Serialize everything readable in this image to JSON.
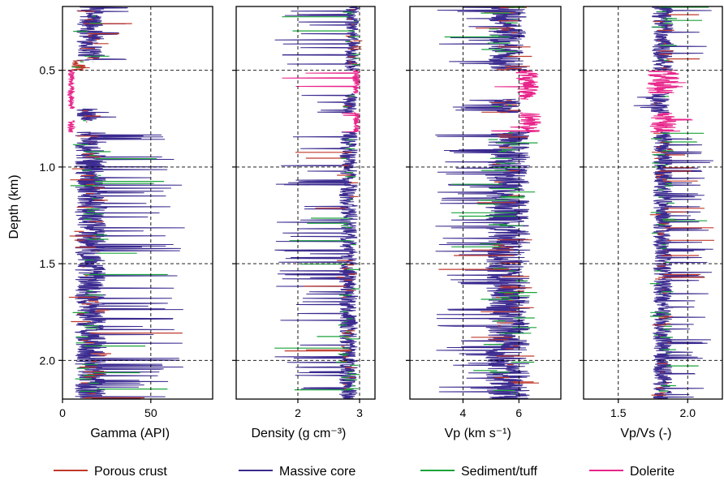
{
  "chart_data": {
    "type": "line",
    "shared_y": {
      "label": "Depth (km)",
      "range": [
        0.17,
        2.2
      ],
      "inverted": true,
      "ticks": [
        0.5,
        1.0,
        1.5,
        2.0
      ],
      "tick_labels": [
        "0.5",
        "1.0",
        "1.5",
        "2.0"
      ]
    },
    "legend": {
      "placement": "bottom",
      "entries": [
        {
          "key": "porous",
          "label": "Porous crust",
          "color": "#c0392b"
        },
        {
          "key": "massive",
          "label": "Massive core",
          "color": "#3b2a8f"
        },
        {
          "key": "sediment",
          "label": "Sediment/tuff",
          "color": "#1aa33a"
        },
        {
          "key": "dolerite",
          "label": "Dolerite",
          "color": "#e8248a"
        }
      ]
    },
    "panels": [
      {
        "id": "gamma",
        "xlabel": "Gamma (API)",
        "xlim": [
          0,
          85
        ],
        "xticks": [
          0,
          50
        ],
        "xtick_labels": [
          "0",
          "50"
        ],
        "ref_x": [
          50
        ],
        "grid_y": true,
        "dolerite_spikes": false,
        "segments": [
          {
            "from": 0.17,
            "to": 0.45,
            "lith": "massive",
            "base": 16,
            "amp": 8,
            "spike": 40,
            "sp": 0.08
          },
          {
            "from": 0.45,
            "to": 0.5,
            "lith": "porous",
            "base": 9,
            "amp": 4,
            "spike": 20,
            "sp": 0.05
          },
          {
            "from": 0.5,
            "to": 0.7,
            "lith": "dolerite",
            "base": 5,
            "amp": 2,
            "spike": 9,
            "sp": 0
          },
          {
            "from": 0.7,
            "to": 0.76,
            "lith": "massive",
            "base": 14,
            "amp": 6,
            "spike": 35,
            "sp": 0.1
          },
          {
            "from": 0.76,
            "to": 0.82,
            "lith": "dolerite",
            "base": 5,
            "amp": 2,
            "spike": 8,
            "sp": 0
          },
          {
            "from": 0.82,
            "to": 2.2,
            "lith": "massive",
            "base": 16,
            "amp": 9,
            "spike": 70,
            "sp": 0.06
          }
        ]
      },
      {
        "id": "density",
        "xlabel": "Density (g cm⁻³)",
        "xlim": [
          1.0,
          3.25
        ],
        "xticks": [
          2,
          3
        ],
        "xtick_labels": [
          "2",
          "3"
        ],
        "ref_x": [
          2,
          3
        ],
        "grid_y": true,
        "dolerite_spikes": true,
        "segments": [
          {
            "from": 0.17,
            "to": 0.5,
            "lith": "massive",
            "base": 2.88,
            "amp": 0.12,
            "spike": 1.6,
            "sp": 0.06
          },
          {
            "from": 0.5,
            "to": 0.62,
            "lith": "dolerite",
            "base": 2.95,
            "amp": 0.06,
            "spike": 1.5,
            "sp": 0.04
          },
          {
            "from": 0.62,
            "to": 0.72,
            "lith": "massive",
            "base": 2.85,
            "amp": 0.12,
            "spike": 2.0,
            "sp": 0.08
          },
          {
            "from": 0.72,
            "to": 0.82,
            "lith": "dolerite",
            "base": 2.95,
            "amp": 0.06,
            "spike": 2.6,
            "sp": 0.05
          },
          {
            "from": 0.82,
            "to": 2.2,
            "lith": "massive",
            "base": 2.82,
            "amp": 0.15,
            "spike": 1.6,
            "sp": 0.06
          }
        ]
      },
      {
        "id": "vp",
        "xlabel": "Vp (km s⁻¹)",
        "xlim": [
          2.1,
          7.5
        ],
        "xticks": [
          4,
          6
        ],
        "xtick_labels": [
          "4",
          "6"
        ],
        "ref_x": [
          4,
          6
        ],
        "grid_y": true,
        "dolerite_spikes": true,
        "segments": [
          {
            "from": 0.17,
            "to": 0.5,
            "lith": "massive",
            "base": 5.6,
            "amp": 0.7,
            "spike": 3.0,
            "sp": 0.07
          },
          {
            "from": 0.5,
            "to": 0.65,
            "lith": "dolerite",
            "base": 6.3,
            "amp": 0.4,
            "spike": 4.5,
            "sp": 0.05
          },
          {
            "from": 0.65,
            "to": 0.72,
            "lith": "massive",
            "base": 5.5,
            "amp": 0.6,
            "spike": 3.5,
            "sp": 0.08
          },
          {
            "from": 0.72,
            "to": 0.82,
            "lith": "dolerite",
            "base": 6.4,
            "amp": 0.4,
            "spike": 5.0,
            "sp": 0.05
          },
          {
            "from": 0.82,
            "to": 2.2,
            "lith": "massive",
            "base": 5.6,
            "amp": 0.8,
            "spike": 3.0,
            "sp": 0.07
          }
        ]
      },
      {
        "id": "vpvs",
        "xlabel": "Vp/Vs (-)",
        "xlim": [
          1.25,
          2.25
        ],
        "xticks": [
          1.5,
          2.0
        ],
        "xtick_labels": [
          "1.5",
          "2.0"
        ],
        "ref_x": [
          1.5,
          2.0
        ],
        "grid_y": true,
        "dolerite_spikes": true,
        "segments": [
          {
            "from": 0.17,
            "to": 0.5,
            "lith": "massive",
            "base": 1.82,
            "amp": 0.08,
            "spike": 2.2,
            "sp": 0.06
          },
          {
            "from": 0.5,
            "to": 0.62,
            "lith": "dolerite",
            "base": 1.82,
            "amp": 0.12,
            "spike": 2.1,
            "sp": 0.05
          },
          {
            "from": 0.62,
            "to": 0.72,
            "lith": "massive",
            "base": 1.8,
            "amp": 0.07,
            "spike": 1.6,
            "sp": 0.06
          },
          {
            "from": 0.72,
            "to": 0.82,
            "lith": "dolerite",
            "base": 1.82,
            "amp": 0.1,
            "spike": 2.05,
            "sp": 0.05
          },
          {
            "from": 0.82,
            "to": 2.2,
            "lith": "massive",
            "base": 1.82,
            "amp": 0.07,
            "spike": 2.2,
            "sp": 0.06
          }
        ]
      }
    ]
  }
}
